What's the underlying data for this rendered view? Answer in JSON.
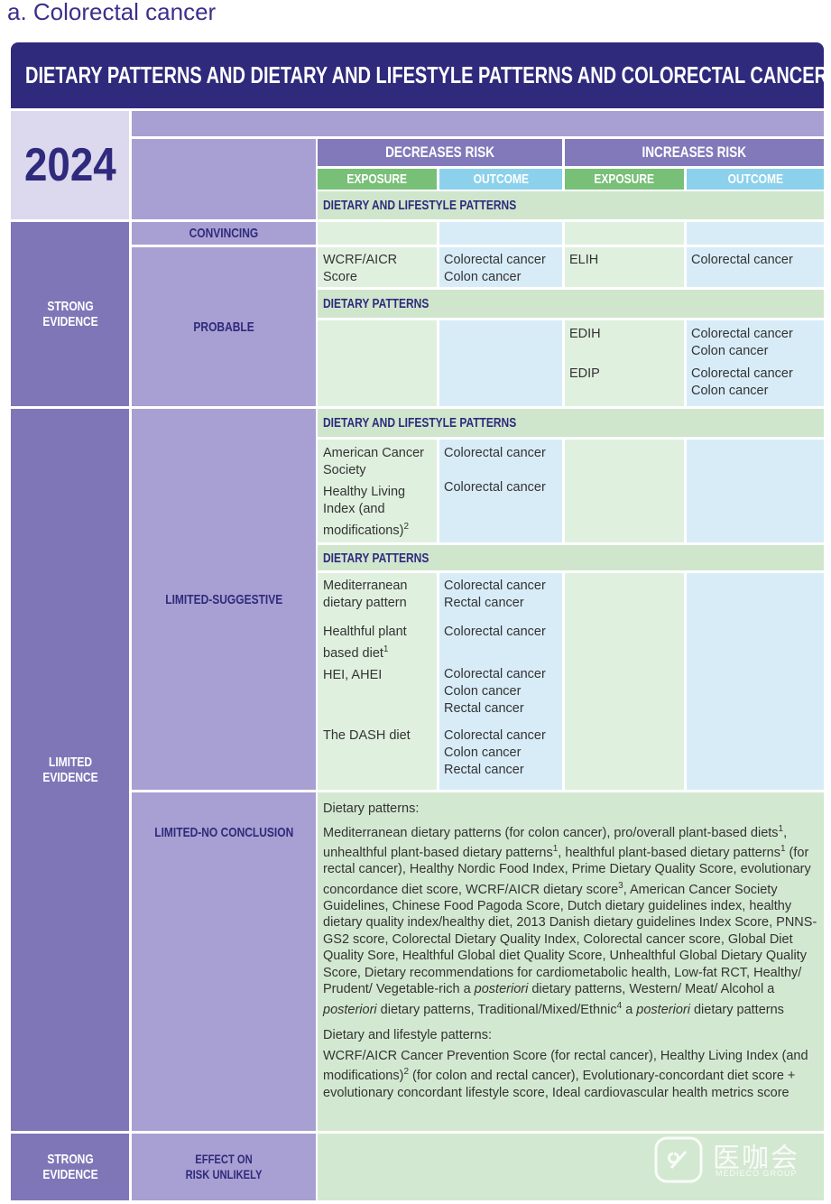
{
  "heading": "a. Colorectal cancer",
  "title": "DIETARY PATTERNS AND DIETARY AND LIFESTYLE PATTERNS AND COLORECTAL CANCER",
  "year": "2024",
  "headers": {
    "decreases": "DECREASES RISK",
    "increases": "INCREASES RISK",
    "exposure": "EXPOSURE",
    "outcome": "OUTCOME"
  },
  "strong": {
    "evidence": "STRONG EVIDENCE",
    "convincing": "CONVINCING",
    "probable": "PROBABLE",
    "sections": [
      {
        "label": "DIETARY AND LIFESTYLE PATTERNS",
        "decreases": [
          {
            "exposure": "WCRF/AICR Score",
            "outcomes": [
              "Colorectal cancer",
              "Colon cancer"
            ]
          }
        ],
        "increases": [
          {
            "exposure": "ELIH",
            "outcomes": [
              "Colorectal cancer"
            ]
          }
        ]
      },
      {
        "label": "DIETARY PATTERNS",
        "increases": [
          {
            "exposure": "EDIH",
            "outcomes": [
              "Colorectal cancer",
              "Colon cancer"
            ]
          },
          {
            "exposure": "EDIP",
            "outcomes": [
              "Colorectal cancer",
              "Colon cancer"
            ]
          }
        ]
      }
    ]
  },
  "limited": {
    "evidence": "LIMITED EVIDENCE",
    "suggestive": "LIMITED-SUGGESTIVE",
    "sections": [
      {
        "label": "DIETARY AND LIFESTYLE PATTERNS",
        "decreases": [
          {
            "exposure": "American Cancer Society",
            "outcomes": [
              "Colorectal cancer"
            ]
          },
          {
            "exposure": "Healthy Living Index (and modifications)",
            "note": "2",
            "outcomes": [
              "Colorectal cancer"
            ]
          }
        ]
      },
      {
        "label": "DIETARY PATTERNS",
        "decreases": [
          {
            "exposure": "Mediterranean dietary pattern",
            "outcomes": [
              "Colorectal cancer",
              "Rectal cancer"
            ]
          },
          {
            "exposure": "Healthful plant based diet",
            "note": "1",
            "outcomes": [
              "Colorectal cancer"
            ]
          },
          {
            "exposure": "HEI, AHEI",
            "outcomes": [
              "Colorectal cancer",
              "Colon cancer",
              "Rectal cancer"
            ]
          },
          {
            "exposure": "The DASH diet",
            "outcomes": [
              "Colorectal cancer",
              "Colon cancer",
              "Rectal cancer"
            ]
          }
        ]
      }
    ],
    "no_conclusion": "LIMITED-NO CONCLUSION",
    "groups": [
      {
        "heading": "Dietary patterns:",
        "runs": [
          "Mediterranean dietary patterns (for colon cancer), pro/overall plant-based diets",
          {
            "note": "1"
          },
          ", unhealthful plant-based dietary patterns",
          {
            "note": "1"
          },
          ", healthful plant-based dietary patterns",
          {
            "note": "1"
          },
          " (for rectal cancer), Healthy Nordic Food Index, Prime Dietary Quality Score, evolutionary concordance diet score, WCRF/AICR dietary score",
          {
            "note": "3"
          },
          ", American Cancer Society Guidelines, Chinese Food Pagoda Score, Dutch dietary guidelines index, healthy dietary quality index/healthy diet, 2013 Danish dietary guidelines Index Score, PNNS-GS2 score, Colorectal Dietary Quality Index, Colorectal cancer score, Global Diet Quality Sore, Healthful Global diet Quality Score, Unhealthful Global Dietary Quality Score, Dietary recommendations for cardiometabolic health, Low-fat RCT, Healthy/ Prudent/ Vegetable-rich a ",
          {
            "italic": "posteriori"
          },
          " dietary patterns, Western/ Meat/ Alcohol a ",
          {
            "italic": "posteriori"
          },
          " dietary patterns, Traditional/Mixed/Ethnic",
          {
            "note": "4"
          },
          " a ",
          {
            "italic": "posteriori"
          },
          " dietary patterns"
        ]
      },
      {
        "heading": "Dietary and lifestyle patterns:",
        "runs": [
          "WCRF/AICR Cancer Prevention Score (for rectal cancer), Healthy Living Index (and modifications)",
          {
            "note": "2"
          },
          " (for colon and rectal cancer), Evolutionary-concordant diet score + evolutionary concordant lifestyle score, Ideal cardiovascular health metrics score"
        ]
      }
    ]
  },
  "unlikely": {
    "evidence": "STRONG EVIDENCE",
    "label": "EFFECT ON RISK UNLIKELY"
  },
  "watermark": {
    "name": "医咖会",
    "group": "MEDIECO GROUP"
  }
}
